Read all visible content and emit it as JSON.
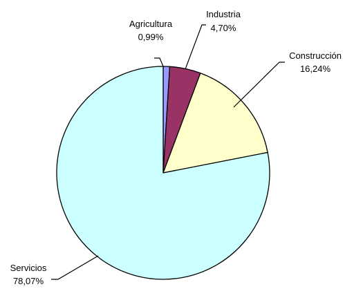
{
  "chart_data": {
    "type": "pie",
    "title": "",
    "start_angle_deg": 0,
    "direction": "clockwise",
    "legend": "none",
    "slices": [
      {
        "category": "Agricultura",
        "value": 0.99,
        "value_label": "0,99%",
        "color": "#9999ff"
      },
      {
        "category": "Industria",
        "value": 4.7,
        "value_label": "4,70%",
        "color": "#993366"
      },
      {
        "category": "Construcción",
        "value": 16.24,
        "value_label": "16,24%",
        "color": "#ffffcc"
      },
      {
        "category": "Servicios",
        "value": 78.07,
        "value_label": "78,07%",
        "color": "#ccffff"
      }
    ]
  }
}
